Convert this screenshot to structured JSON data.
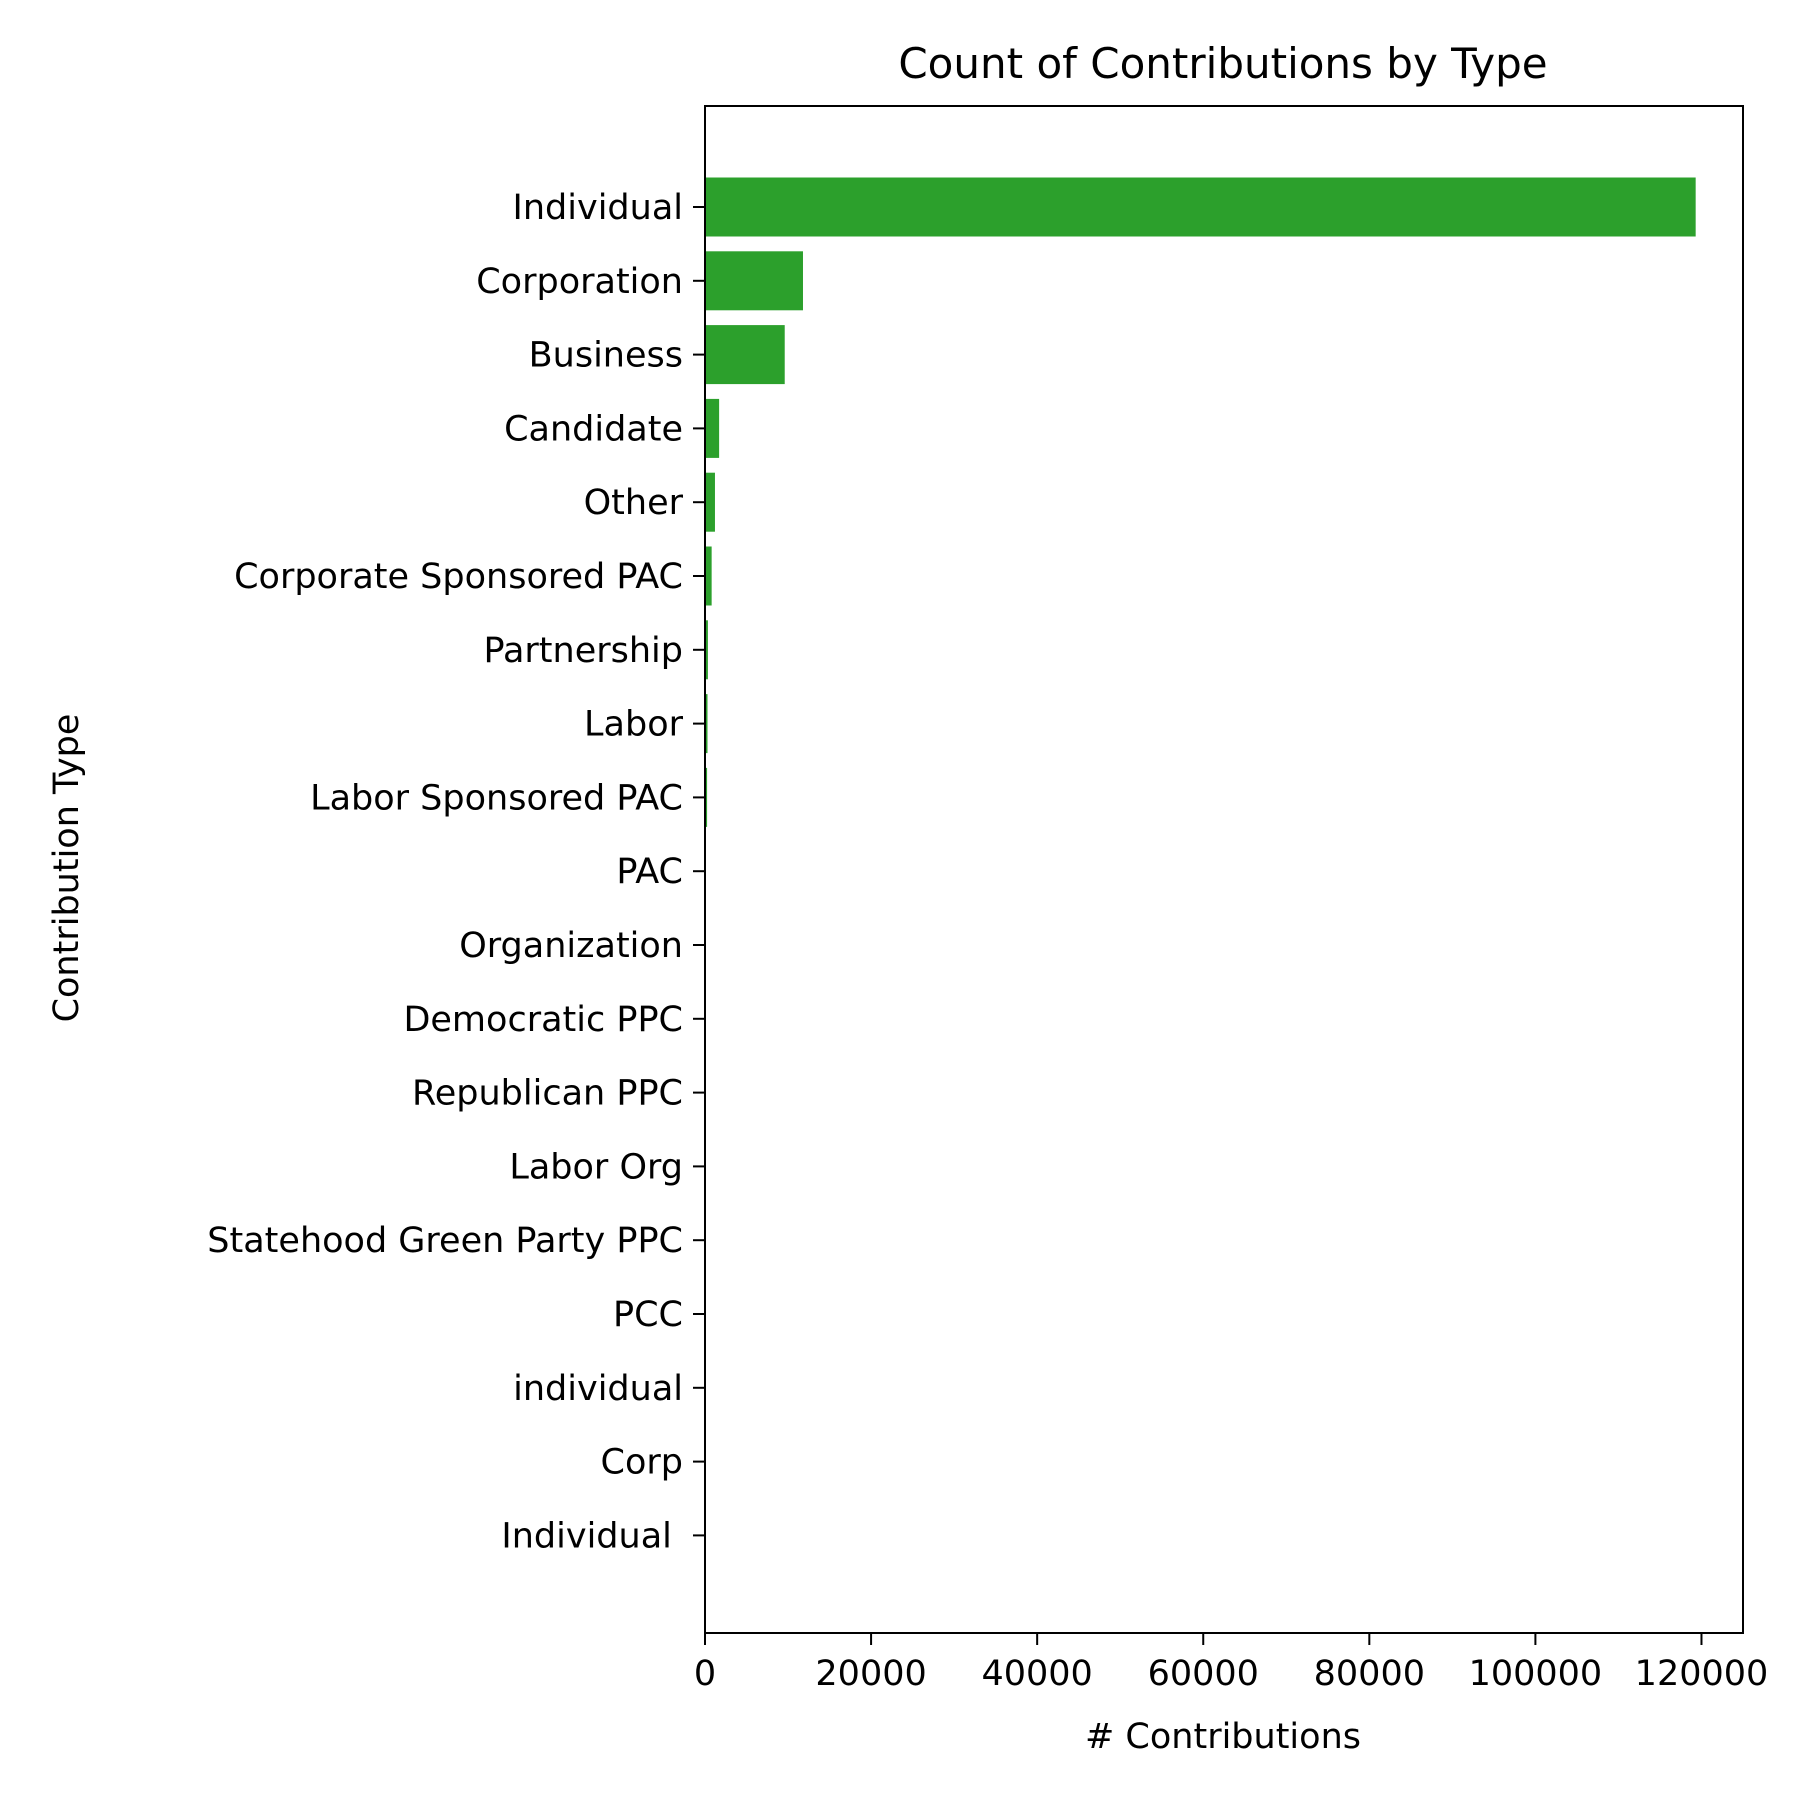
{
  "chart_data": {
    "type": "bar",
    "orientation": "horizontal",
    "title": "Count of Contributions by Type",
    "xlabel": "# Contributions",
    "ylabel": "Contribution Type",
    "xlim": [
      0,
      125000
    ],
    "xticks": [
      0,
      20000,
      40000,
      60000,
      80000,
      100000,
      120000
    ],
    "xtick_labels": [
      "0",
      "20000",
      "40000",
      "60000",
      "80000",
      "100000",
      "120000"
    ],
    "grid": false,
    "legend": "none",
    "bar_color": "#2ca02c",
    "categories": [
      "Individual",
      "Corporation",
      "Business",
      "Candidate",
      "Other",
      "Corporate Sponsored PAC",
      "Partnership",
      "Labor",
      "Labor Sponsored PAC",
      "PAC",
      "Organization",
      "Democratic PPC",
      "Republican PPC",
      "Labor Org",
      "Statehood Green Party PPC",
      "PCC",
      "individual",
      "Corp",
      "Individual "
    ],
    "values": [
      119300,
      11800,
      9600,
      1700,
      1200,
      800,
      350,
      300,
      250,
      40,
      30,
      20,
      20,
      15,
      10,
      5,
      2,
      1,
      1
    ]
  }
}
